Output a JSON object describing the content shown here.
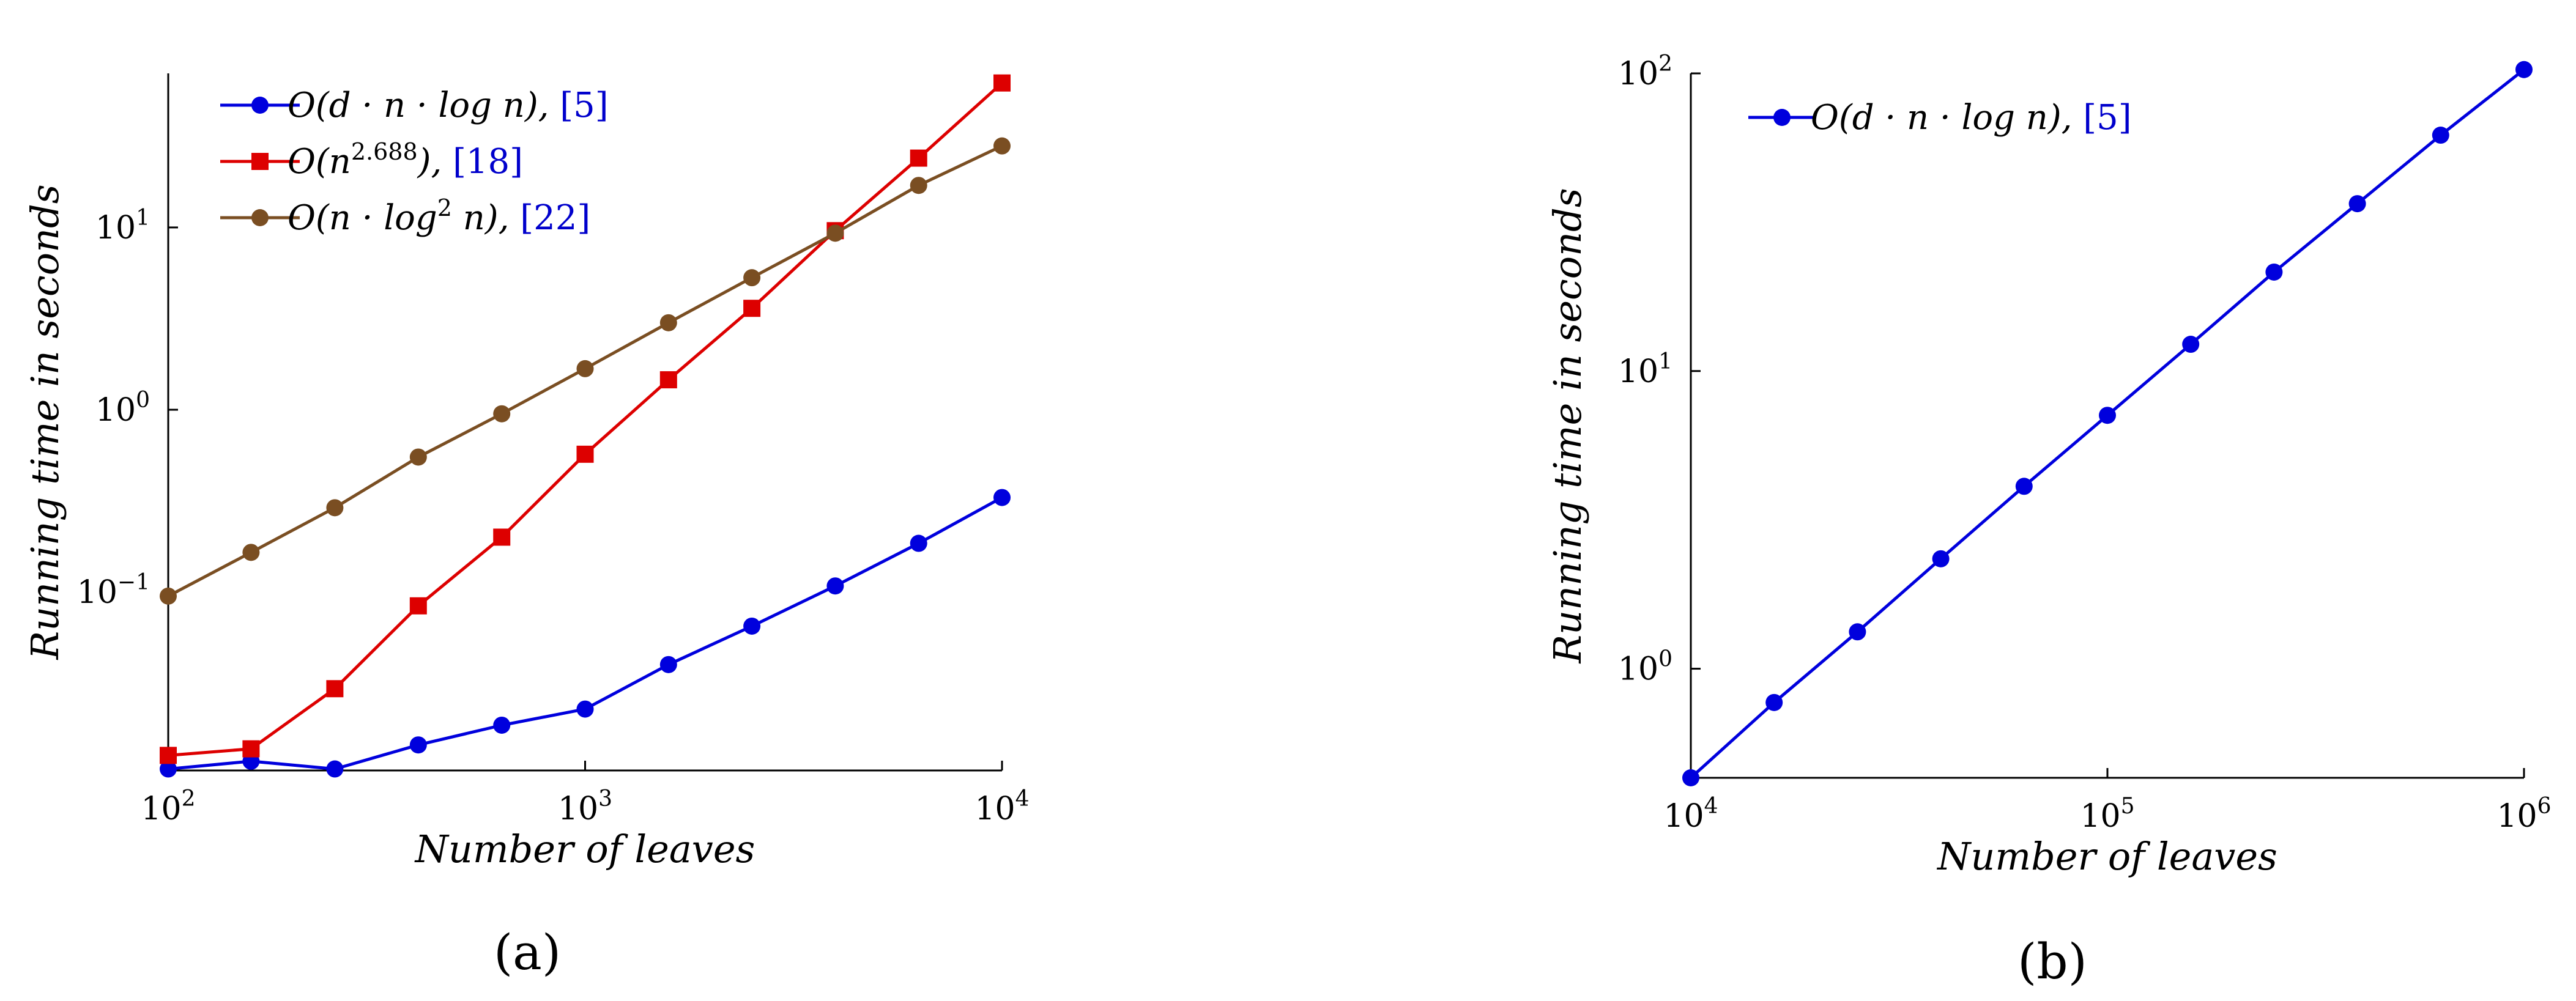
{
  "chart_data": [
    {
      "type": "line",
      "caption": "(a)",
      "xlabel": "Number of leaves",
      "ylabel": "Running time in seconds",
      "x_scale": "log",
      "y_scale": "log",
      "xlim": [
        100,
        10000
      ],
      "ylim": [
        0.0105,
        70
      ],
      "x_ticks": [
        {
          "value": 100,
          "base": "10",
          "exp": "2"
        },
        {
          "value": 1000,
          "base": "10",
          "exp": "3"
        },
        {
          "value": 10000,
          "base": "10",
          "exp": "4"
        }
      ],
      "y_ticks": [
        {
          "value": 0.1,
          "base": "10",
          "exp": "−1"
        },
        {
          "value": 1,
          "base": "10",
          "exp": "0"
        },
        {
          "value": 10,
          "base": "10",
          "exp": "1"
        }
      ],
      "grid": false,
      "legend_position": "top-left",
      "series": [
        {
          "name": "O(d · n · log n), [5]",
          "name_main": "O(d · n · log n), ",
          "name_ref": "[5]",
          "color": "#0000dd",
          "marker": "circle",
          "x": [
            100,
            158,
            251,
            398,
            631,
            1000,
            1585,
            2512,
            3981,
            6310,
            10000
          ],
          "y": [
            0.0107,
            0.0118,
            0.0107,
            0.0145,
            0.0186,
            0.0228,
            0.04,
            0.065,
            0.108,
            0.185,
            0.33
          ]
        },
        {
          "name": "O(n^2.688), [18]",
          "name_main": "O(n",
          "name_sup": "2.688",
          "name_tail": "), ",
          "name_ref": "[18]",
          "color": "#dd0000",
          "marker": "square",
          "x": [
            100,
            158,
            251,
            398,
            631,
            1000,
            1585,
            2512,
            3981,
            6310,
            10000
          ],
          "y": [
            0.0127,
            0.0138,
            0.0295,
            0.084,
            0.2,
            0.57,
            1.46,
            3.6,
            9.6,
            24,
            62
          ]
        },
        {
          "name": "O(n · log^2 n), [22]",
          "name_main": "O(n · log",
          "name_sup": "2",
          "name_tail": " n), ",
          "name_ref": "[22]",
          "color": "#7a4e22",
          "marker": "circle",
          "x": [
            100,
            158,
            251,
            398,
            631,
            1000,
            1585,
            2512,
            3981,
            6310,
            10000
          ],
          "y": [
            0.095,
            0.165,
            0.29,
            0.55,
            0.95,
            1.68,
            3.0,
            5.3,
            9.3,
            17,
            28
          ]
        }
      ]
    },
    {
      "type": "line",
      "caption": "(b)",
      "xlabel": "Number of leaves",
      "ylabel": "Running time in seconds",
      "x_scale": "log",
      "y_scale": "log",
      "xlim": [
        10000,
        1000000
      ],
      "ylim": [
        0.43,
        100
      ],
      "x_ticks": [
        {
          "value": 10000,
          "base": "10",
          "exp": "4"
        },
        {
          "value": 100000,
          "base": "10",
          "exp": "5"
        },
        {
          "value": 1000000,
          "base": "10",
          "exp": "6"
        }
      ],
      "y_ticks": [
        {
          "value": 1,
          "base": "10",
          "exp": "0"
        },
        {
          "value": 10,
          "base": "10",
          "exp": "1"
        },
        {
          "value": 100,
          "base": "10",
          "exp": "2"
        }
      ],
      "grid": false,
      "legend_position": "top-left",
      "series": [
        {
          "name": "O(d · n · log n), [5]",
          "name_main": "O(d · n · log n), ",
          "name_ref": "[5]",
          "color": "#0000dd",
          "marker": "circle",
          "x": [
            10000,
            15849,
            25119,
            39811,
            63096,
            100000,
            158489,
            251189,
            398107,
            630957,
            1000000
          ],
          "y": [
            0.43,
            0.77,
            1.33,
            2.34,
            4.1,
            7.1,
            12.3,
            21.5,
            36.5,
            62,
            103
          ]
        }
      ]
    }
  ]
}
